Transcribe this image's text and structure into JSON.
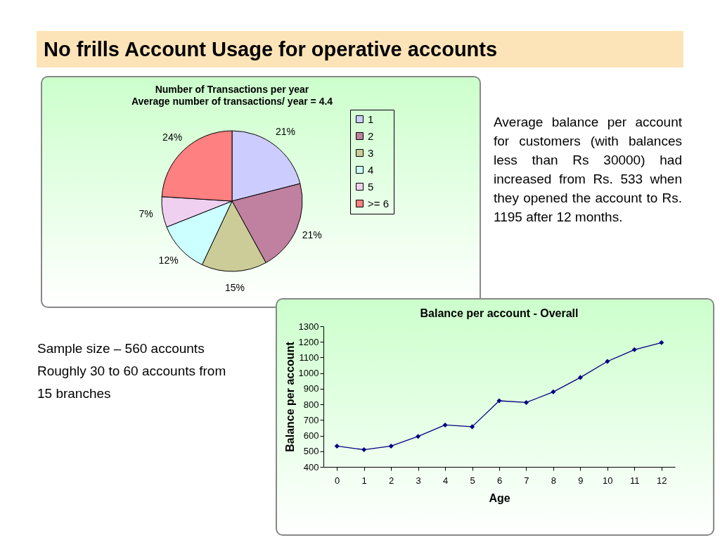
{
  "chart_data": [
    {
      "type": "other",
      "title": "No frills Account Usage for operative accounts",
      "annotations": [
        "Average balance per account for customers (with balances less than Rs 30000) had increased from Rs. 533 when they opened the account to Rs. 1195 after 12 months.",
        "Sample size – 560 accounts",
        "Roughly 30 to 60 accounts from",
        "15 branches"
      ]
    },
    {
      "type": "pie",
      "title": "Number of Transactions per year",
      "subtitle": "Average number of transactions/ year = 4.4",
      "categories": [
        "1",
        "2",
        "3",
        "4",
        "5",
        ">= 6"
      ],
      "values": [
        21,
        21,
        15,
        12,
        7,
        24
      ],
      "colors": [
        "#ccccff",
        "#c080a0",
        "#cccc99",
        "#ccffff",
        "#f0d0f0",
        "#ff8080"
      ],
      "value_labels": [
        "21%",
        "21%",
        "15%",
        "12%",
        "7%",
        "24%"
      ],
      "legend": "right"
    },
    {
      "type": "line",
      "title": "Balance per account - Overall",
      "xlabel": "Age",
      "ylabel": "Balance per account",
      "categories": [
        "0",
        "1",
        "2",
        "3",
        "4",
        "5",
        "6",
        "7",
        "8",
        "9",
        "10",
        "11",
        "12"
      ],
      "series": [
        {
          "color": "#000080",
          "values": [
            533,
            510,
            533,
            595,
            668,
            657,
            823,
            812,
            880,
            972,
            1075,
            1150,
            1195
          ]
        }
      ],
      "ylim": [
        400,
        1300
      ],
      "yticks": [
        400,
        500,
        600,
        700,
        800,
        900,
        1000,
        1100,
        1200,
        1300
      ],
      "grid": false,
      "marker": "diamond",
      "line_style": "solid"
    }
  ]
}
